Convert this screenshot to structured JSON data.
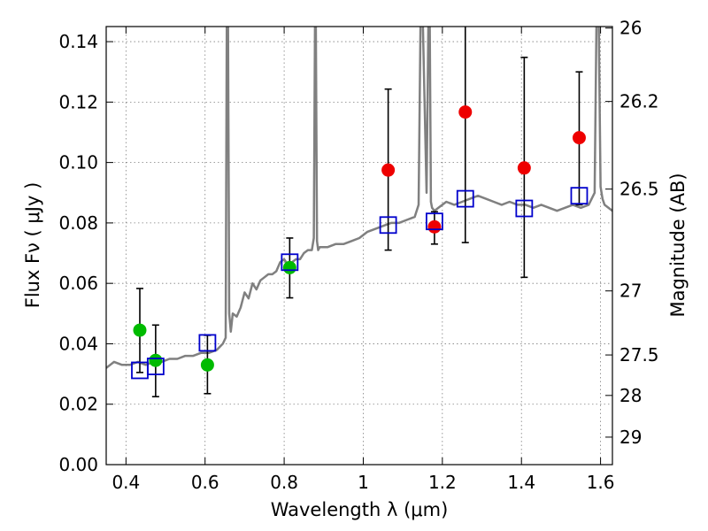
{
  "chart_data": {
    "type": "scatter",
    "title": "",
    "xlabel": "Wavelength  λ (μm)",
    "ylabel": "Flux  Fν  ( μJy )",
    "y2label": "Magnitude (AB)",
    "xlim": [
      0.35,
      1.63
    ],
    "ylim": [
      0.0,
      0.145
    ],
    "grid": true,
    "legend": "none",
    "x_ticks": [
      0.4,
      0.6,
      0.8,
      1.0,
      1.2,
      1.4,
      1.6
    ],
    "x_tick_labels": [
      "0.4",
      "0.6",
      "0.8",
      "1",
      "1.2",
      "1.4",
      "1.6"
    ],
    "y_ticks": [
      0.0,
      0.02,
      0.04,
      0.06,
      0.08,
      0.1,
      0.12,
      0.14
    ],
    "y_tick_labels": [
      "0.00",
      "0.02",
      "0.04",
      "0.06",
      "0.08",
      "0.10",
      "0.12",
      "0.14"
    ],
    "y2_ticks": [
      {
        "label": "26",
        "flux": 0.1445
      },
      {
        "label": "26.2",
        "flux": 0.1202
      },
      {
        "label": "26.5",
        "flux": 0.0912
      },
      {
        "label": "27",
        "flux": 0.0575
      },
      {
        "label": "27.5",
        "flux": 0.0363
      },
      {
        "label": "28",
        "flux": 0.0229
      },
      {
        "label": "29",
        "flux": 0.0091
      }
    ],
    "colors": {
      "spectrum": "#808080",
      "green_points": "#00bb00",
      "red_points": "#ee0000",
      "model_boxes": "#0000cc",
      "error_bars": "#000000",
      "grid": "#7f7f7f"
    },
    "series": [
      {
        "marker": "circle",
        "color": "#00bb00",
        "points": [
          {
            "x": 0.435,
            "y": 0.0445,
            "err_lo": 0.0305,
            "err_hi": 0.0583
          },
          {
            "x": 0.475,
            "y": 0.0345,
            "err_lo": 0.0225,
            "err_hi": 0.0462
          },
          {
            "x": 0.606,
            "y": 0.033,
            "err_lo": 0.0235,
            "err_hi": 0.0428
          },
          {
            "x": 0.814,
            "y": 0.0652,
            "err_lo": 0.0552,
            "err_hi": 0.075
          }
        ]
      },
      {
        "marker": "circle",
        "color": "#ee0000",
        "points": [
          {
            "x": 1.063,
            "y": 0.0975,
            "err_lo": 0.071,
            "err_hi": 0.1243
          },
          {
            "x": 1.18,
            "y": 0.0787,
            "err_lo": 0.073,
            "err_hi": 0.0837
          },
          {
            "x": 1.258,
            "y": 0.1167,
            "err_lo": 0.0735,
            "err_hi": 0.147
          },
          {
            "x": 1.407,
            "y": 0.0982,
            "err_lo": 0.062,
            "err_hi": 0.1348
          },
          {
            "x": 1.546,
            "y": 0.1082,
            "err_lo": 0.086,
            "err_hi": 0.13
          }
        ]
      },
      {
        "marker": "open-square",
        "color": "#0000cc",
        "points": [
          {
            "x": 0.435,
            "y": 0.0312
          },
          {
            "x": 0.475,
            "y": 0.0325
          },
          {
            "x": 0.606,
            "y": 0.0403
          },
          {
            "x": 0.814,
            "y": 0.067
          },
          {
            "x": 1.063,
            "y": 0.0793
          },
          {
            "x": 1.18,
            "y": 0.0805
          },
          {
            "x": 1.258,
            "y": 0.088
          },
          {
            "x": 1.407,
            "y": 0.0848
          },
          {
            "x": 1.546,
            "y": 0.089
          }
        ]
      },
      {
        "type": "line",
        "color": "#808080",
        "x": [
          0.35,
          0.37,
          0.39,
          0.41,
          0.43,
          0.45,
          0.47,
          0.49,
          0.51,
          0.53,
          0.55,
          0.57,
          0.59,
          0.61,
          0.63,
          0.645,
          0.652,
          0.655,
          0.658,
          0.661,
          0.665,
          0.67,
          0.68,
          0.69,
          0.7,
          0.71,
          0.72,
          0.73,
          0.74,
          0.75,
          0.76,
          0.77,
          0.78,
          0.79,
          0.8,
          0.81,
          0.82,
          0.83,
          0.84,
          0.85,
          0.86,
          0.87,
          0.875,
          0.878,
          0.88,
          0.883,
          0.886,
          0.89,
          0.91,
          0.93,
          0.95,
          0.97,
          0.99,
          1.01,
          1.03,
          1.05,
          1.07,
          1.09,
          1.11,
          1.13,
          1.14,
          1.145,
          1.15,
          1.16,
          1.165,
          1.168,
          1.171,
          1.174,
          1.18,
          1.19,
          1.21,
          1.23,
          1.25,
          1.27,
          1.29,
          1.31,
          1.33,
          1.35,
          1.37,
          1.39,
          1.41,
          1.43,
          1.45,
          1.47,
          1.49,
          1.51,
          1.53,
          1.55,
          1.57,
          1.585,
          1.59,
          1.595,
          1.6,
          1.605,
          1.61,
          1.63
        ],
        "y": [
          0.032,
          0.034,
          0.033,
          0.033,
          0.034,
          0.033,
          0.034,
          0.034,
          0.035,
          0.035,
          0.036,
          0.036,
          0.037,
          0.037,
          0.038,
          0.04,
          0.042,
          0.15,
          0.15,
          0.05,
          0.044,
          0.05,
          0.049,
          0.052,
          0.057,
          0.055,
          0.06,
          0.058,
          0.061,
          0.062,
          0.063,
          0.063,
          0.064,
          0.067,
          0.068,
          0.066,
          0.067,
          0.068,
          0.068,
          0.07,
          0.071,
          0.071,
          0.075,
          0.15,
          0.15,
          0.074,
          0.071,
          0.072,
          0.072,
          0.073,
          0.073,
          0.074,
          0.075,
          0.077,
          0.078,
          0.079,
          0.08,
          0.08,
          0.081,
          0.082,
          0.086,
          0.15,
          0.15,
          0.09,
          0.15,
          0.15,
          0.087,
          0.085,
          0.084,
          0.085,
          0.087,
          0.086,
          0.087,
          0.088,
          0.089,
          0.088,
          0.087,
          0.086,
          0.087,
          0.086,
          0.086,
          0.085,
          0.086,
          0.085,
          0.084,
          0.085,
          0.086,
          0.085,
          0.086,
          0.09,
          0.15,
          0.15,
          0.092,
          0.088,
          0.086,
          0.084
        ]
      }
    ]
  }
}
